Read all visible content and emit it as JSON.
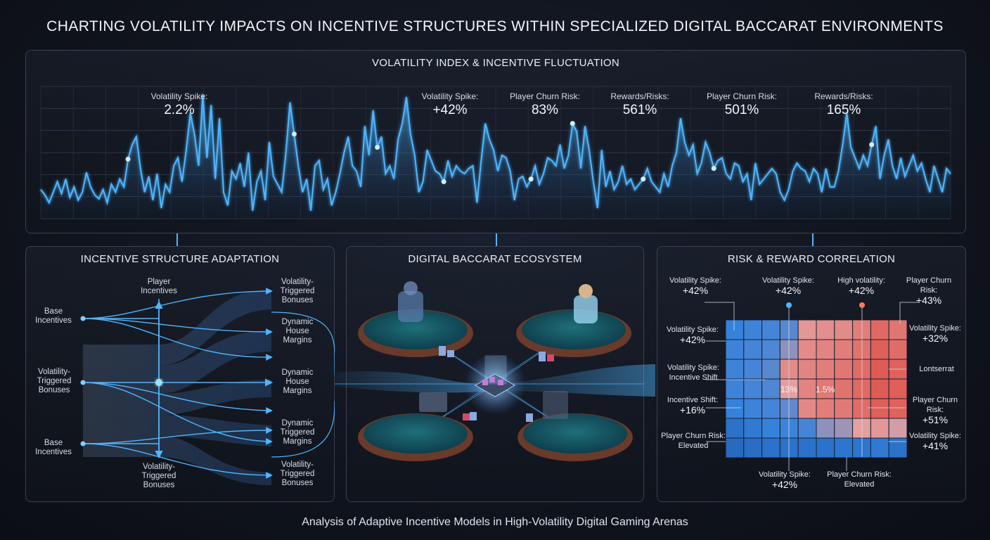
{
  "title": "CHARTING VOLATILITY IMPACTS ON INCENTIVE STRUCTURES WITHIN SPECIALIZED DIGITAL BACCARAT ENVIRONMENTS",
  "footer": "Analysis of Adaptive Incentive Models in High-Volatility Digital Gaming Arenas",
  "colors": {
    "line": "#4fb6ff",
    "background": "#10141d",
    "cool": "#3d8fe0",
    "hot": "#e8564d"
  },
  "chart_data": [
    {
      "type": "line",
      "title": "VOLATILITY INDEX & INCENTIVE FLUCTUATION",
      "xlabel": "",
      "ylabel": "",
      "grid": true,
      "ylim": [
        0,
        100
      ],
      "series": [
        {
          "values": [
            22,
            18,
            12,
            20,
            28,
            19,
            30,
            16,
            24,
            14,
            20,
            35,
            24,
            18,
            15,
            22,
            12,
            26,
            20,
            30,
            24,
            45,
            56,
            62,
            38,
            20,
            32,
            14,
            34,
            8,
            26,
            20,
            40,
            46,
            28,
            52,
            80,
            64,
            40,
            94,
            46,
            86,
            30,
            76,
            20,
            10,
            36,
            30,
            42,
            24,
            50,
            6,
            28,
            36,
            14,
            58,
            32,
            26,
            20,
            50,
            88,
            64,
            40,
            20,
            30,
            6,
            40,
            44,
            22,
            30,
            10,
            20,
            34,
            50,
            62,
            40,
            36,
            24,
            70,
            48,
            82,
            54,
            62,
            34,
            40,
            30,
            60,
            72,
            92,
            64,
            48,
            20,
            28,
            52,
            44,
            36,
            34,
            28,
            44,
            32,
            40,
            36,
            34,
            38,
            40,
            12,
            44,
            72,
            60,
            52,
            36,
            48,
            46,
            36,
            14,
            30,
            32,
            24,
            30,
            40,
            26,
            34,
            46,
            44,
            40,
            56,
            38,
            48,
            72,
            66,
            38,
            70,
            52,
            28,
            8,
            52,
            24,
            36,
            22,
            28,
            40,
            26,
            30,
            22,
            26,
            30,
            38,
            28,
            24,
            20,
            34,
            24,
            40,
            50,
            76,
            58,
            48,
            56,
            34,
            42,
            58,
            50,
            38,
            44,
            46,
            34,
            30,
            42,
            40,
            28,
            34,
            14,
            42,
            26,
            30,
            34,
            38,
            34,
            20,
            14,
            22,
            36,
            42,
            38,
            36,
            28,
            38,
            34,
            20,
            38,
            24,
            24,
            36,
            56,
            80,
            54,
            46,
            38,
            48,
            40,
            56,
            70,
            30,
            48,
            60,
            40,
            30,
            46,
            32,
            40,
            48,
            36,
            42,
            30,
            20,
            40,
            30,
            20,
            38,
            34
          ]
        }
      ],
      "annotations": [
        {
          "label": "Volatility Spike:",
          "value": "2.2%"
        },
        {
          "label": "Volatility Spike:",
          "value": "+42%"
        },
        {
          "label": "Player Churn Risk:",
          "value": "83%"
        },
        {
          "label": "Rewards/Risks:",
          "value": "561%"
        },
        {
          "label": "Player Churn Risk:",
          "value": "501%"
        },
        {
          "label": "Rewards/Risks:",
          "value": "165%"
        }
      ]
    },
    {
      "type": "heatmap",
      "title": "RISK & REWARD CORRELATION",
      "rows": 7,
      "cols": 10,
      "values": [
        [
          0.1,
          0.12,
          0.14,
          0.18,
          0.55,
          0.6,
          0.62,
          0.7,
          0.82,
          0.75
        ],
        [
          0.12,
          0.14,
          0.16,
          0.3,
          0.62,
          0.66,
          0.7,
          0.76,
          0.88,
          0.8
        ],
        [
          0.12,
          0.14,
          0.18,
          0.62,
          0.66,
          0.7,
          0.74,
          0.8,
          0.9,
          0.86
        ],
        [
          0.12,
          0.14,
          0.16,
          0.5,
          0.66,
          0.72,
          0.76,
          0.82,
          0.9,
          0.88
        ],
        [
          0.1,
          0.12,
          0.14,
          0.2,
          0.64,
          0.7,
          0.72,
          0.8,
          0.88,
          0.86
        ],
        [
          0.06,
          0.08,
          0.1,
          0.12,
          0.14,
          0.3,
          0.34,
          0.5,
          0.55,
          0.46
        ],
        [
          0.04,
          0.05,
          0.06,
          0.06,
          0.06,
          0.06,
          0.07,
          0.07,
          0.08,
          0.06
        ]
      ],
      "cell_labels": [
        {
          "text": "13%"
        },
        {
          "text": "1.5%"
        }
      ]
    }
  ],
  "volatility_panel": {
    "title": "VOLATILITY INDEX & INCENTIVE FLUCTUATION"
  },
  "incentive_panel": {
    "title": "INCENTIVE STRUCTURE ADAPTATION",
    "left_labels": [
      "Base Incentives",
      "Volatility-Triggered Bonuses",
      "Base Incentives"
    ],
    "top_axis": "Player Incentives",
    "bottom_axis": "Volatility-Triggered Bonuses",
    "right_labels": [
      "Volatility-Triggered Bonuses",
      "Dynamic House Margins",
      "Dynamic House Margins",
      "Dynamic Triggered Margins",
      "Volatility-Triggered Bonuses"
    ]
  },
  "ecosystem_panel": {
    "title": "DIGITAL BACCARAT ECOSYSTEM"
  },
  "risk_panel": {
    "title": "RISK & REWARD CORRELATION",
    "top_labels": [
      {
        "label": "Volatility Spike:",
        "value": "+42%"
      },
      {
        "label": "Volatility Spike:",
        "value": "+42%"
      },
      {
        "label": "High volatility:",
        "value": "+42%"
      },
      {
        "label": "Player Churn Risk:",
        "value": "+43%"
      }
    ],
    "left_labels": [
      {
        "label": "Volatility Spike:",
        "value": "+42%"
      },
      {
        "label": "Volatility Spike:",
        "value": "Incentive Shift"
      },
      {
        "label": "Incentive Shift:",
        "value": "+16%"
      },
      {
        "label": "Player Churn Risk:",
        "value": "Elevated"
      }
    ],
    "right_labels": [
      {
        "label": "Volatility Spike:",
        "value": "+32%"
      },
      {
        "label": "Lontserrat",
        "value": ""
      },
      {
        "label": "Player Churn Risk:",
        "value": "+51%"
      },
      {
        "label": "Volatility Spike:",
        "value": "+41%"
      }
    ],
    "bottom_labels": [
      {
        "label": "Volatility Spike:",
        "value": "+42%"
      },
      {
        "label": "Player Churn Risk:",
        "value": "Elevated"
      }
    ]
  }
}
